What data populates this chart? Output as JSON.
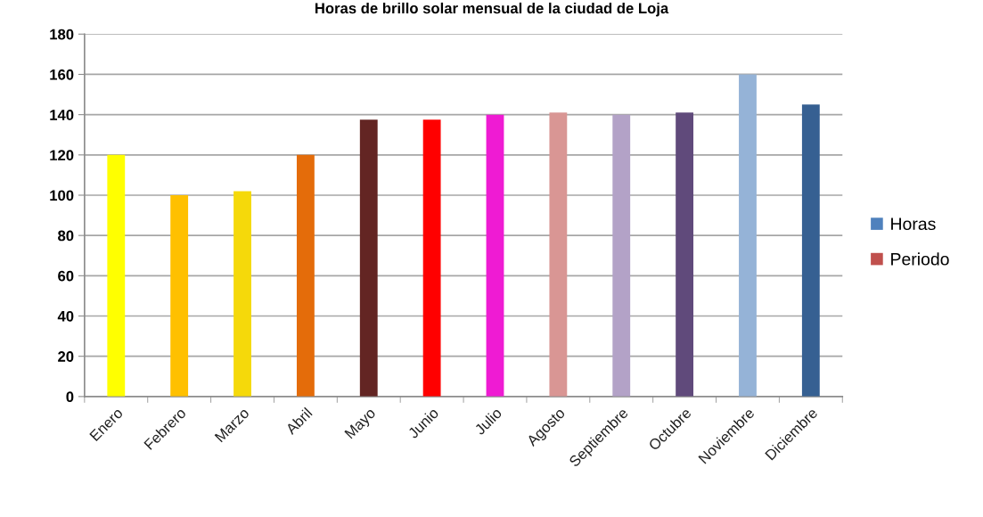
{
  "chart_data": {
    "type": "bar",
    "title": "Horas de brillo solar mensual de la ciudad de Loja",
    "categories": [
      "Enero",
      "Febrero",
      "Marzo",
      "Abril",
      "Mayo",
      "Junio",
      "Julio",
      "Agosto",
      "Septiembre",
      "Octubre",
      "Noviembre",
      "Diciembre"
    ],
    "series": [
      {
        "name": "Horas",
        "color": "#4f81bd",
        "colors": [
          "#ffff00",
          "#ffc000",
          "#f5d90a",
          "#e46c0a",
          "#632523",
          "#ff0000",
          "#ef1bd3",
          "#d99694",
          "#b3a2c7",
          "#604a7b",
          "#95b3d7",
          "#366092"
        ],
        "values": [
          120,
          100,
          102,
          120,
          137.5,
          137.5,
          140,
          141,
          140,
          141,
          160,
          145
        ]
      },
      {
        "name": "Periodo",
        "color": "#c0504d",
        "values": [
          null,
          null,
          null,
          null,
          null,
          null,
          null,
          null,
          null,
          null,
          null,
          null
        ]
      }
    ],
    "ylim": [
      0,
      180
    ],
    "yticks": [
      0,
      20,
      40,
      60,
      80,
      100,
      120,
      140,
      160,
      180
    ],
    "grid": "y",
    "legend": "right"
  }
}
